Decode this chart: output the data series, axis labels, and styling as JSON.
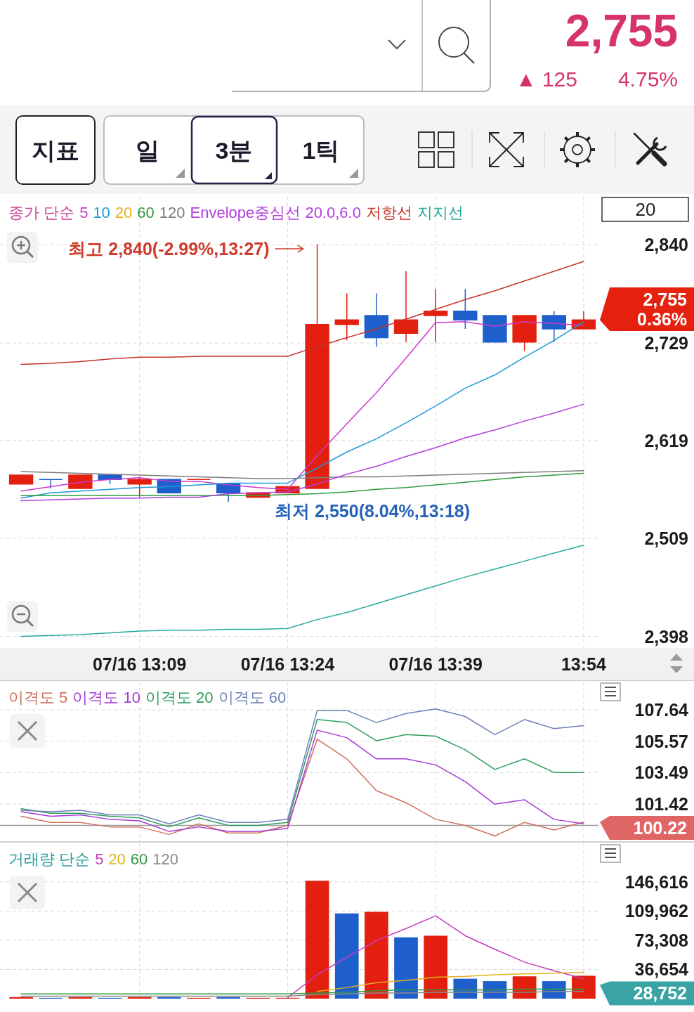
{
  "chart_data": [
    {
      "type": "other",
      "title": "2,755",
      "annotations": [
        "▲ 125",
        "4.75%",
        "지표",
        "일",
        "3분",
        "1틱",
        "20"
      ]
    },
    {
      "type": "candlestick",
      "legend": "top left",
      "legend_title": "종가 단순",
      "grid": true,
      "categories": [
        null,
        null,
        null,
        null,
        "07/16 13:09",
        null,
        null,
        null,
        null,
        "07/16 13:24",
        null,
        null,
        null,
        null,
        "07/16 13:39",
        null,
        null,
        null,
        null,
        "13:54"
      ],
      "ylim": [
        2385,
        2894
      ],
      "yticks": [
        {
          "value": 2840,
          "label": "2,840"
        },
        {
          "value": 2729,
          "label": "2,729"
        },
        {
          "value": 2619,
          "label": "2,619"
        },
        {
          "value": 2509,
          "label": "2,509"
        },
        {
          "value": 2398,
          "label": "2,398"
        }
      ],
      "ohlc": [
        [
          2570,
          2580,
          2570,
          2580
        ],
        [
          2575,
          2575,
          2565,
          2575
        ],
        [
          2565,
          2580,
          2565,
          2580
        ],
        [
          2580,
          2580,
          2570,
          2575
        ],
        [
          2570,
          2578,
          2555,
          2575
        ],
        [
          2575,
          2575,
          2560,
          2560
        ],
        [
          2575,
          2575,
          2575,
          2575
        ],
        [
          2570,
          2570,
          2550,
          2560
        ],
        [
          2555,
          2560,
          2555,
          2560
        ],
        [
          2560,
          2567,
          2560,
          2567
        ],
        [
          2565,
          2840,
          2565,
          2750
        ],
        [
          2750,
          2785,
          2732,
          2755
        ],
        [
          2760,
          2785,
          2725,
          2735
        ],
        [
          2740,
          2810,
          2730,
          2755
        ],
        [
          2760,
          2790,
          2730,
          2765
        ],
        [
          2765,
          2790,
          2745,
          2755
        ],
        [
          2760,
          2760,
          2730,
          2730
        ],
        [
          2730,
          2760,
          2720,
          2760
        ],
        [
          2760,
          2765,
          2730,
          2745
        ],
        [
          2745,
          2765,
          2745,
          2755
        ]
      ],
      "colors": [
        "#e3200f",
        "#1f5fcc",
        "#e3200f",
        "#1f5fcc",
        "#e3200f",
        "#1f5fcc",
        "#e3200f",
        "#1f5fcc",
        "#e3200f",
        "#e3200f",
        "#e3200f",
        "#e3200f",
        "#1f5fcc",
        "#e3200f",
        "#e3200f",
        "#1f5fcc",
        "#1f5fcc",
        "#e3200f",
        "#1f5fcc",
        "#e3200f"
      ],
      "series": [
        {
          "name": "5",
          "type": "line",
          "color": "#cc3acc",
          "values": [
            2562,
            2567,
            2572,
            2575,
            2577,
            2573,
            2573,
            2569,
            2566,
            2564,
            2602,
            2638,
            2673,
            2712,
            2752,
            2753,
            2748,
            2753,
            2751,
            2749
          ]
        },
        {
          "name": "10",
          "type": "line",
          "color": "#1c9ad6",
          "values": [
            2554,
            2560,
            2562,
            2564,
            2566,
            2567,
            2569,
            2571,
            2571,
            2571,
            2588,
            2606,
            2621,
            2639,
            2658,
            2678,
            2693,
            2713,
            2732,
            2753
          ]
        },
        {
          "name": "20",
          "type": "line",
          "color": "#e6b417",
          "values": [
            null,
            null,
            null,
            null,
            null,
            null,
            null,
            null,
            null,
            null,
            null,
            null,
            null,
            null,
            null,
            null,
            null,
            null,
            null,
            null
          ]
        },
        {
          "name": "60",
          "type": "line",
          "color": "#2e9a3e",
          "values": [
            2557,
            2557,
            2557,
            2557,
            2557,
            2557,
            2557,
            2557,
            2557,
            2558,
            2559,
            2561,
            2564,
            2566,
            2569,
            2572,
            2575,
            2578,
            2580,
            2582
          ]
        },
        {
          "name": "120",
          "type": "line",
          "color": "#7d7d7d",
          "values": [
            2584,
            2583,
            2582,
            2581,
            2580,
            2579,
            2578,
            2577,
            2576,
            2576,
            2577,
            2578,
            2578,
            2579,
            2580,
            2581,
            2582,
            2583,
            2584,
            2585
          ]
        },
        {
          "name": "Envelope중심선 20.0,6.0",
          "type": "line",
          "color": "#b23ee0",
          "values": [
            2551,
            2552,
            2553,
            2554,
            2554,
            2555,
            2555,
            2559,
            2560,
            2561,
            2570,
            2581,
            2590,
            2601,
            2611,
            2622,
            2631,
            2641,
            2650,
            2660
          ]
        },
        {
          "name": "저항선",
          "type": "line",
          "color": "#c8342a",
          "values": [
            2705,
            2706,
            2708,
            2711,
            2713,
            2713,
            2714,
            2714,
            2714,
            2714,
            2725,
            2735,
            2745,
            2756,
            2767,
            2778,
            2788,
            2799,
            2810,
            2821
          ]
        },
        {
          "name": "지지선",
          "type": "line",
          "color": "#26aa9a",
          "values": [
            2398,
            2399,
            2400,
            2402,
            2404,
            2405,
            2405,
            2406,
            2406,
            2407,
            2417,
            2425,
            2435,
            2445,
            2455,
            2465,
            2474,
            2483,
            2492,
            2501
          ]
        }
      ],
      "annotations": [
        "최고 2,840(-2.99%,13:27)",
        "최저 2,550(8.04%,13:18)",
        "2,755",
        "0.36%"
      ]
    },
    {
      "type": "line",
      "legend": "top left",
      "grid": true,
      "tick_labels": "y",
      "categories": [
        null,
        null,
        null,
        null,
        null,
        null,
        null,
        null,
        null,
        null,
        null,
        null,
        null,
        null,
        null,
        null,
        null,
        null,
        null,
        null
      ],
      "ylim": [
        99,
        109.5
      ],
      "yticks": [
        107.64,
        105.57,
        103.49,
        101.42
      ],
      "ref_lines": [
        {
          "axis": "y",
          "value": 100,
          "color": "#9b9b9b"
        }
      ],
      "series": [
        {
          "name": "이격도 5",
          "type": "line",
          "color": "#d0705c",
          "values": [
            100.6,
            100.2,
            100.2,
            99.9,
            99.9,
            99.4,
            100.1,
            99.5,
            99.5,
            100.0,
            105.7,
            104.4,
            102.3,
            101.5,
            100.4,
            100.0,
            99.3,
            100.2,
            99.7,
            100.22
          ]
        },
        {
          "name": "이격도 10",
          "type": "line",
          "color": "#a33bd6",
          "values": [
            100.9,
            100.6,
            100.7,
            100.4,
            100.3,
            99.6,
            99.9,
            99.6,
            99.6,
            99.8,
            106.3,
            105.8,
            104.4,
            104.4,
            104.0,
            102.9,
            101.4,
            101.7,
            100.4,
            100.1
          ]
        },
        {
          "name": "이격도 20",
          "type": "line",
          "color": "#2c9e5e",
          "values": [
            101.1,
            100.8,
            100.8,
            100.6,
            100.5,
            99.9,
            100.5,
            100.0,
            100.0,
            100.2,
            107.0,
            106.8,
            105.6,
            106.0,
            105.9,
            105.0,
            103.7,
            104.4,
            103.5,
            103.5
          ]
        },
        {
          "name": "이격도 60",
          "type": "line",
          "color": "#6d80b8",
          "values": [
            101.0,
            100.9,
            101.0,
            100.7,
            100.7,
            100.1,
            100.7,
            100.2,
            100.2,
            100.4,
            107.6,
            107.6,
            106.8,
            107.4,
            107.7,
            107.2,
            106.0,
            107.0,
            106.4,
            106.6
          ]
        }
      ],
      "annotations": [
        "100.22"
      ]
    },
    {
      "type": "bar",
      "legend": "top left",
      "legend_title": "거래량 단순",
      "grid": true,
      "tick_labels": "y",
      "categories": [
        null,
        null,
        null,
        null,
        null,
        null,
        null,
        null,
        null,
        null,
        null,
        null,
        null,
        null,
        null,
        null,
        null,
        null,
        null,
        null
      ],
      "ylim": [
        0,
        195000
      ],
      "yticks": [
        {
          "value": 146616,
          "label": "146,616"
        },
        {
          "value": 109962,
          "label": "109,962"
        },
        {
          "value": 73308,
          "label": "73,308"
        },
        {
          "value": 36654,
          "label": "36,654"
        }
      ],
      "series": [
        {
          "type": "bar",
          "colors": [
            "#e3200f",
            "#1f5fcc",
            "#e3200f",
            "#1f5fcc",
            "#e3200f",
            "#1f5fcc",
            "#e3200f",
            "#1f5fcc",
            "#e3200f",
            "#e3200f",
            "#e3200f",
            "#1f5fcc",
            "#e3200f",
            "#1f5fcc",
            "#e3200f",
            "#1f5fcc",
            "#1f5fcc",
            "#e3200f",
            "#1f5fcc",
            "#e3200f"
          ],
          "values": [
            2000,
            1000,
            2000,
            1000,
            2000,
            2000,
            1000,
            2000,
            1000,
            1000,
            148000,
            107000,
            109000,
            77000,
            79000,
            25000,
            22000,
            28000,
            22000,
            28752
          ]
        },
        {
          "name": "5",
          "type": "line",
          "color": "#c83cc0",
          "values": [
            null,
            null,
            null,
            null,
            null,
            null,
            null,
            null,
            null,
            1000,
            30000,
            52000,
            73000,
            88000,
            104000,
            79000,
            62000,
            46000,
            35000,
            25000
          ]
        },
        {
          "name": "20",
          "type": "line",
          "color": "#e2b21a",
          "values": [
            null,
            null,
            null,
            null,
            null,
            null,
            null,
            null,
            null,
            null,
            9000,
            14000,
            20000,
            23000,
            27000,
            28000,
            30000,
            31000,
            32000,
            33000
          ]
        },
        {
          "name": "60",
          "type": "line",
          "color": "#2e9a3e",
          "values": [
            6000,
            6000,
            6000,
            6000,
            6000,
            6000,
            6000,
            6000,
            6000,
            6000,
            7000,
            8000,
            10000,
            11000,
            11000,
            11000,
            11000,
            12000,
            12000,
            12000
          ]
        },
        {
          "name": "120",
          "type": "line",
          "color": "#8a8a8a",
          "values": [
            3000,
            3000,
            3000,
            3000,
            3000,
            3000,
            3000,
            3000,
            3000,
            3000,
            5000,
            6000,
            7000,
            7000,
            8000,
            8000,
            8000,
            8000,
            9000,
            9000
          ]
        }
      ],
      "annotations": [
        "28,752"
      ]
    }
  ]
}
